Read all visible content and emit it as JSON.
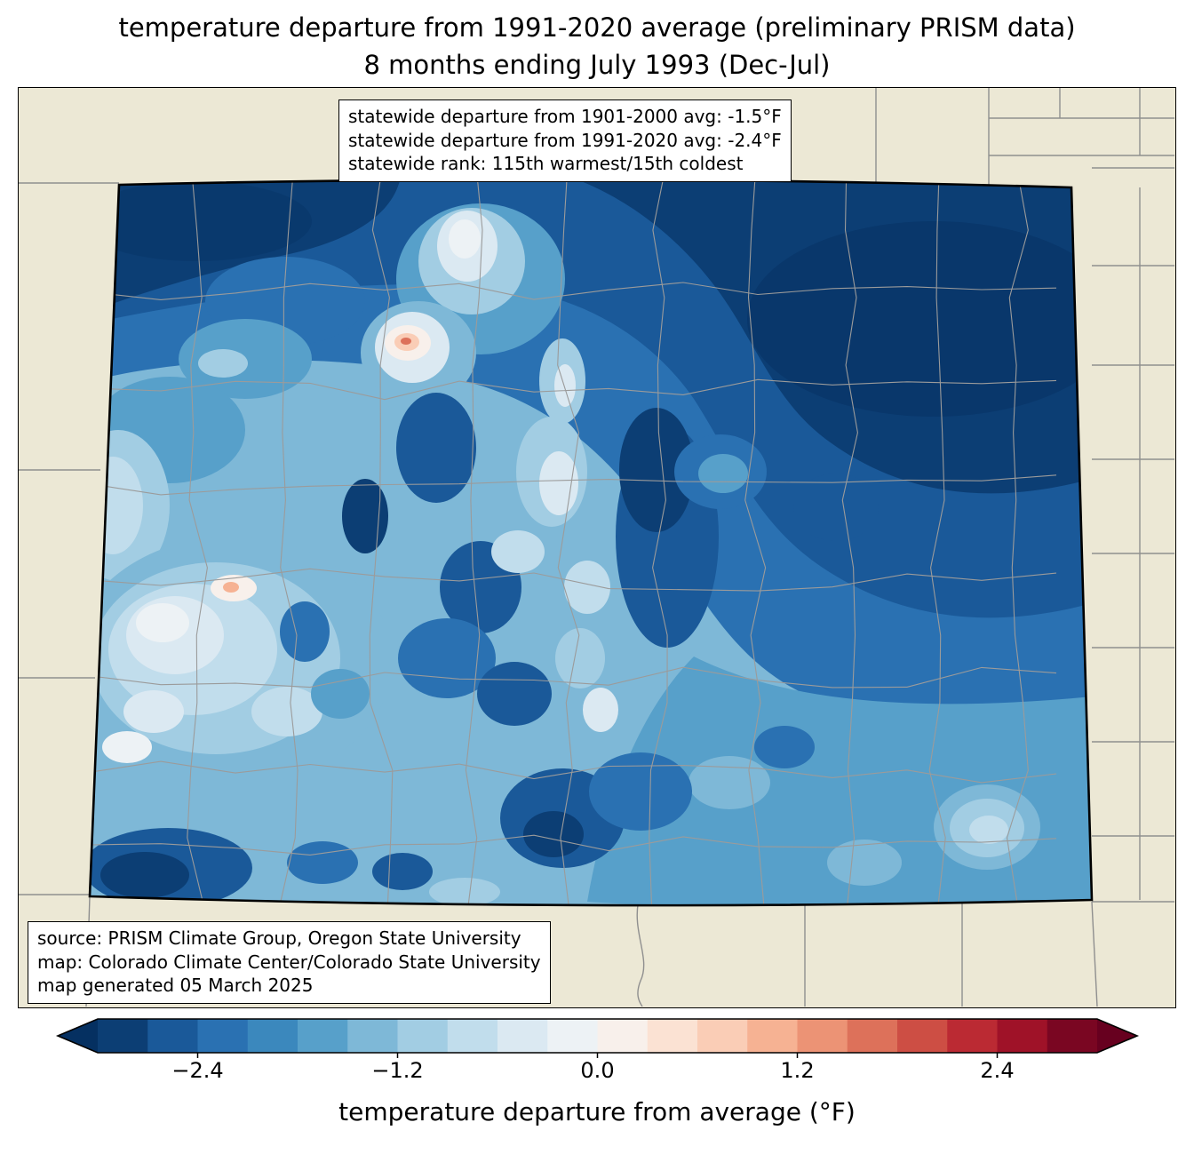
{
  "title": {
    "line1": "temperature departure from 1991-2020 average (preliminary PRISM data)",
    "line2": "8 months ending July 1993 (Dec-Jul)"
  },
  "stats_box": {
    "line1": "statewide departure from 1901-2000 avg: -1.5°F",
    "line2": "statewide departure from 1991-2020 avg: -2.4°F",
    "line3": "statewide rank: 115th warmest/15th coldest"
  },
  "credits_box": {
    "line1": "source: PRISM Climate Group, Oregon State University",
    "line2": "map: Colorado Climate Center/Colorado State University",
    "line3": "map generated 05 March 2025"
  },
  "map": {
    "region": "Colorado",
    "background_color": "#ece8d5",
    "county_line_color": "#9b9b9b",
    "state_border_color": "#000000"
  },
  "colorbar": {
    "label": "temperature departure from average (°F)",
    "range": [
      -3.0,
      3.0
    ],
    "ticks": [
      {
        "value": -2.4,
        "label": "−2.4"
      },
      {
        "value": -1.2,
        "label": "−1.2"
      },
      {
        "value": 0.0,
        "label": "0.0"
      },
      {
        "value": 1.2,
        "label": "1.2"
      },
      {
        "value": 2.4,
        "label": "2.4"
      }
    ],
    "segment_colors": [
      "#0c3e74",
      "#1a5999",
      "#2a71b2",
      "#3b88bd",
      "#57a0ca",
      "#7eb8d7",
      "#a2cde3",
      "#c1ddec",
      "#dbe9f2",
      "#edf2f5",
      "#f8f0eb",
      "#fbe2d3",
      "#facdb6",
      "#f6b293",
      "#ec9375",
      "#dd715a",
      "#cd4e44",
      "#bb2a33",
      "#9f1228",
      "#7a0622"
    ],
    "under_color": "#053061",
    "over_color": "#67001f"
  }
}
